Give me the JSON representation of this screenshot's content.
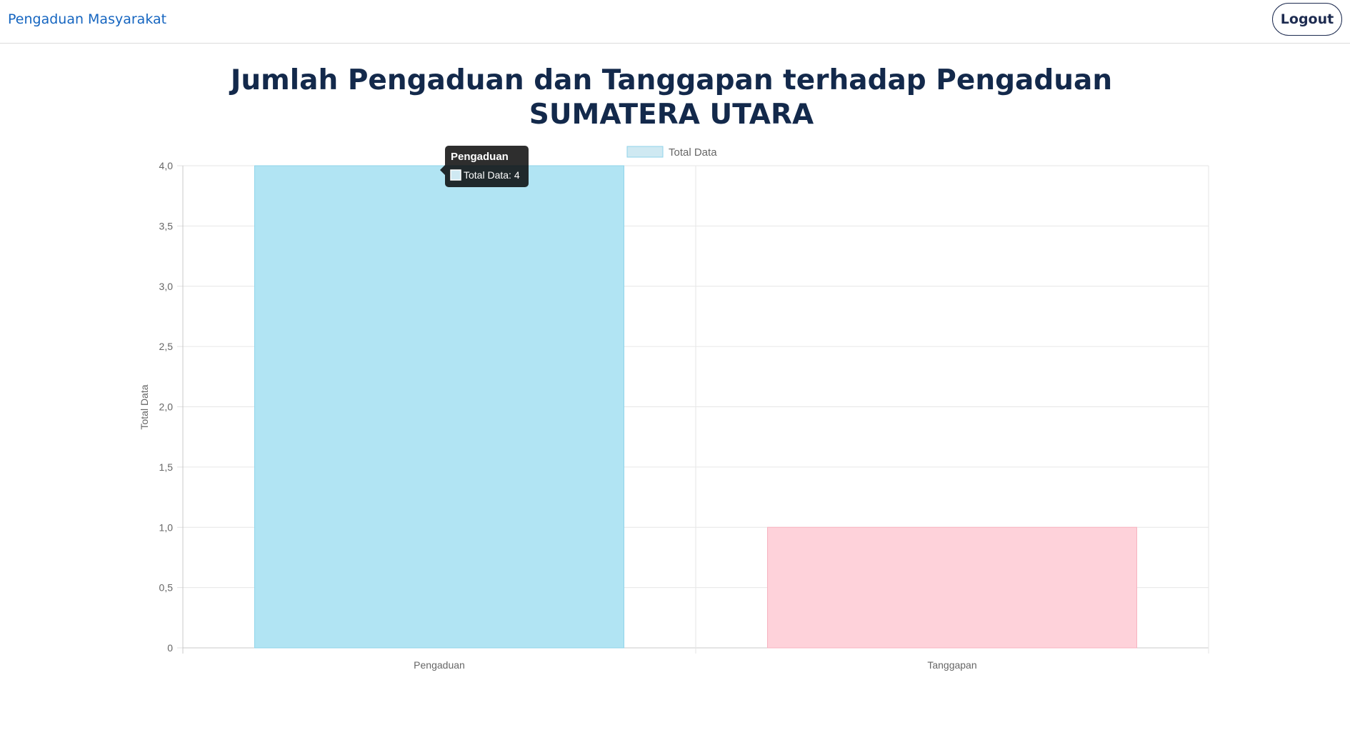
{
  "navbar": {
    "brand": "Pengaduan Masyarakat",
    "logout_label": "Logout"
  },
  "page": {
    "title_line1": "Jumlah Pengaduan dan Tanggapan terhadap Pengaduan",
    "title_line2": "SUMATERA UTARA"
  },
  "colors": {
    "brand": "#1565c0",
    "title": "#13294b",
    "bar_pengaduan_fill": "#b1e4f3",
    "bar_pengaduan_stroke": "#8fd3ea",
    "bar_tanggapan_fill": "#fed2da",
    "bar_tanggapan_stroke": "#f7b2c0",
    "legend_swatch": "#cfe9f2"
  },
  "chart_data": {
    "type": "bar",
    "categories": [
      "Pengaduan",
      "Tanggapan"
    ],
    "series": [
      {
        "name": "Total Data",
        "values": [
          4,
          1
        ]
      }
    ],
    "xlabel": "",
    "ylabel": "Total Data",
    "ylim": [
      0,
      4
    ],
    "yticks": [
      0,
      0.5,
      1,
      1.5,
      2,
      2.5,
      3,
      3.5,
      4
    ],
    "ytick_labels": [
      "0",
      "0,5",
      "1,0",
      "1,5",
      "2,0",
      "2,5",
      "3,0",
      "3,5",
      "4,0"
    ],
    "grid": true,
    "legend": "top-center",
    "tooltip": {
      "title": "Pengaduan",
      "body": "Total Data: 4"
    }
  }
}
